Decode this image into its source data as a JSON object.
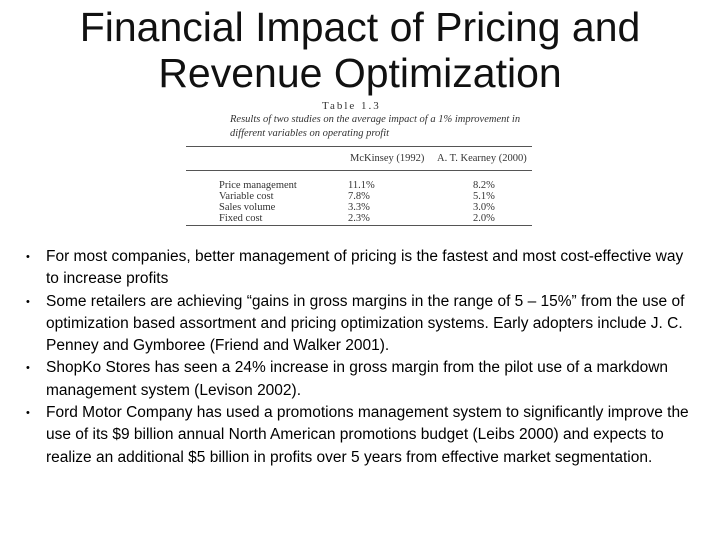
{
  "slide": {
    "title": "Financial Impact of Pricing and Revenue Optimization"
  },
  "table": {
    "label": "Table 1.3",
    "caption": "Results of two studies on the average impact of a 1% improvement in different variables on operating profit",
    "columns": [
      "McKinsey (1992)",
      "A. T. Kearney (2000)"
    ],
    "rows": [
      {
        "label": "Price management",
        "values": [
          "11.1%",
          "8.2%"
        ]
      },
      {
        "label": "Variable cost",
        "values": [
          "7.8%",
          "5.1%"
        ]
      },
      {
        "label": "Sales volume",
        "values": [
          "3.3%",
          "3.0%"
        ]
      },
      {
        "label": "Fixed cost",
        "values": [
          "2.3%",
          "2.0%"
        ]
      }
    ]
  },
  "bullets": [
    "For most companies, better management of pricing is the fastest and most cost-effective way to increase profits",
    "Some retailers are achieving “gains in gross margins in the range of 5 – 15%” from the use of optimization based assortment and pricing optimization systems. Early adopters include J. C. Penney and Gymboree (Friend and Walker 2001).",
    "ShopKo Stores has seen a 24% increase in gross margin from the pilot use of a markdown management system (Levison 2002).",
    "Ford Motor Company has used a promotions management system to significantly improve the use of its $9 billion annual North American promotions budget (Leibs 2000) and expects to realize an additional $5 billion in profits over 5 years from effective market segmentation."
  ]
}
